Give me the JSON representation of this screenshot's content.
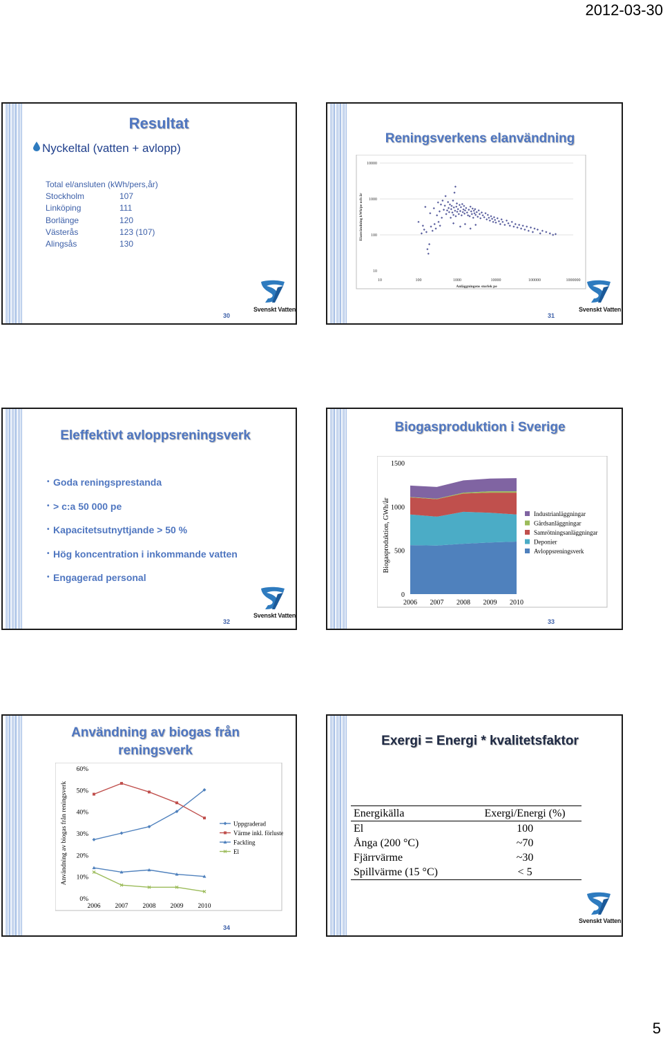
{
  "page": {
    "date": "2012-03-30",
    "number": "5"
  },
  "brand": {
    "name": "Svenskt Vatten",
    "blue": "#2e7bbf",
    "title_color": "#4f76c0"
  },
  "slide30": {
    "number": "30",
    "title": "Resultat",
    "subtitle": "Nyckeltal (vatten + avlopp)",
    "header": "Total el/ansluten (kWh/pers,år)",
    "rows": [
      {
        "city": "Stockholm",
        "value": "107"
      },
      {
        "city": "Linköping",
        "value": "111"
      },
      {
        "city": "Borlänge",
        "value": "120"
      },
      {
        "city": "Västerås",
        "value": "123 (107)"
      },
      {
        "city": "Alingsås",
        "value": "130"
      }
    ]
  },
  "slide31": {
    "number": "31",
    "title": "Reningsverkens elanvändning",
    "chart_data": {
      "type": "scatter",
      "title": "",
      "xlabel": "Anläggningens storlek pe",
      "ylabel": "Elanvändning kWh/pe och år",
      "x_scale": "log",
      "y_scale": "log",
      "xlim": [
        10,
        1000000
      ],
      "ylim": [
        10,
        10000
      ],
      "x_ticks": [
        "10",
        "100",
        "1000",
        "10000",
        "100000",
        "1000000"
      ],
      "y_ticks": [
        "10",
        "100",
        "1000",
        "10000"
      ],
      "color": "#5a5f9e",
      "points": [
        [
          150,
          600
        ],
        [
          200,
          400
        ],
        [
          250,
          550
        ],
        [
          300,
          350
        ],
        [
          320,
          800
        ],
        [
          350,
          450
        ],
        [
          380,
          700
        ],
        [
          400,
          300
        ],
        [
          420,
          900
        ],
        [
          450,
          500
        ],
        [
          480,
          650
        ],
        [
          500,
          1200
        ],
        [
          520,
          380
        ],
        [
          550,
          480
        ],
        [
          580,
          820
        ],
        [
          600,
          560
        ],
        [
          620,
          430
        ],
        [
          650,
          700
        ],
        [
          680,
          300
        ],
        [
          700,
          520
        ],
        [
          720,
          640
        ],
        [
          750,
          420
        ],
        [
          780,
          900
        ],
        [
          800,
          360
        ],
        [
          820,
          580
        ],
        [
          850,
          1500
        ],
        [
          880,
          470
        ],
        [
          900,
          2200
        ],
        [
          920,
          330
        ],
        [
          950,
          610
        ],
        [
          980,
          750
        ],
        [
          1000,
          440
        ],
        [
          1050,
          520
        ],
        [
          1100,
          380
        ],
        [
          1150,
          680
        ],
        [
          1200,
          460
        ],
        [
          1250,
          590
        ],
        [
          1300,
          350
        ],
        [
          1350,
          720
        ],
        [
          1400,
          430
        ],
        [
          1450,
          510
        ],
        [
          1500,
          640
        ],
        [
          1550,
          390
        ],
        [
          1600,
          480
        ],
        [
          1700,
          560
        ],
        [
          1800,
          420
        ],
        [
          1900,
          350
        ],
        [
          2000,
          500
        ],
        [
          2100,
          330
        ],
        [
          2200,
          610
        ],
        [
          2300,
          450
        ],
        [
          2400,
          380
        ],
        [
          2500,
          540
        ],
        [
          2600,
          300
        ],
        [
          2700,
          470
        ],
        [
          2800,
          400
        ],
        [
          2900,
          520
        ],
        [
          3000,
          360
        ],
        [
          3200,
          430
        ],
        [
          3400,
          320
        ],
        [
          3600,
          480
        ],
        [
          3800,
          380
        ],
        [
          4000,
          290
        ],
        [
          4300,
          420
        ],
        [
          4600,
          350
        ],
        [
          5000,
          310
        ],
        [
          5400,
          400
        ],
        [
          5800,
          270
        ],
        [
          6200,
          360
        ],
        [
          6600,
          300
        ],
        [
          7000,
          250
        ],
        [
          7500,
          330
        ],
        [
          8000,
          280
        ],
        [
          8500,
          230
        ],
        [
          9000,
          310
        ],
        [
          9500,
          260
        ],
        [
          10000,
          220
        ],
        [
          11000,
          290
        ],
        [
          12000,
          240
        ],
        [
          13000,
          200
        ],
        [
          14000,
          270
        ],
        [
          15000,
          230
        ],
        [
          17000,
          190
        ],
        [
          19000,
          250
        ],
        [
          21000,
          210
        ],
        [
          23000,
          180
        ],
        [
          26000,
          230
        ],
        [
          29000,
          170
        ],
        [
          32000,
          200
        ],
        [
          36000,
          160
        ],
        [
          40000,
          190
        ],
        [
          45000,
          150
        ],
        [
          50000,
          180
        ],
        [
          56000,
          140
        ],
        [
          63000,
          170
        ],
        [
          70000,
          130
        ],
        [
          80000,
          160
        ],
        [
          90000,
          120
        ],
        [
          100000,
          150
        ],
        [
          120000,
          140
        ],
        [
          140000,
          110
        ],
        [
          160000,
          130
        ],
        [
          200000,
          120
        ],
        [
          250000,
          110
        ],
        [
          300000,
          100
        ],
        [
          350000,
          105
        ],
        [
          100,
          230
        ],
        [
          120,
          110
        ],
        [
          130,
          180
        ],
        [
          140,
          140
        ],
        [
          160,
          120
        ],
        [
          170,
          40
        ],
        [
          180,
          30
        ],
        [
          190,
          55
        ],
        [
          210,
          170
        ],
        [
          230,
          130
        ],
        [
          260,
          200
        ],
        [
          280,
          150
        ],
        [
          330,
          230
        ],
        [
          360,
          180
        ],
        [
          1200,
          170
        ],
        [
          1600,
          200
        ],
        [
          2200,
          150
        ],
        [
          800,
          210
        ],
        [
          3000,
          190
        ]
      ]
    }
  },
  "slide32": {
    "number": "32",
    "title": "Eleffektivt avloppsreningsverk",
    "bullets": [
      "Goda reningsprestanda",
      "> c:a 50 000 pe",
      "Kapacitetsutnyttjande > 50 %",
      "Hög koncentration i inkommande vatten",
      "Engagerad personal"
    ]
  },
  "slide33": {
    "number": "33",
    "title": "Biogasproduktion i Sverige",
    "chart_data": {
      "type": "area",
      "title": "",
      "ylabel": "Biogasproduktion, GWh/år",
      "x": [
        "2006",
        "2007",
        "2008",
        "2009",
        "2010"
      ],
      "ylim": [
        0,
        1500
      ],
      "y_ticks": [
        "0",
        "500",
        "1000",
        "1500"
      ],
      "stacked": true,
      "legend_position": "right",
      "series": [
        {
          "name": "Avloppsreningsverk",
          "color": "#4f81bd",
          "values": [
            560,
            555,
            575,
            590,
            600
          ]
        },
        {
          "name": "Deponier",
          "color": "#4bacc6",
          "values": [
            350,
            330,
            365,
            340,
            310
          ]
        },
        {
          "name": "Samrötningsanläggningar",
          "color": "#c0504d",
          "values": [
            195,
            200,
            210,
            230,
            250
          ]
        },
        {
          "name": "Gårdsanläggningar",
          "color": "#9bbb59",
          "values": [
            5,
            5,
            10,
            15,
            15
          ]
        },
        {
          "name": "Industrianläggningar",
          "color": "#8064a2",
          "values": [
            130,
            135,
            140,
            145,
            150
          ]
        }
      ]
    }
  },
  "slide34": {
    "number": "34",
    "title": "Användning av biogas från reningsverk",
    "chart_data": {
      "type": "line",
      "title": "",
      "ylabel": "Användning av biogas från reningsverk",
      "x": [
        "2006",
        "2007",
        "2008",
        "2009",
        "2010"
      ],
      "ylim": [
        0,
        60
      ],
      "y_ticks": [
        "0%",
        "10%",
        "20%",
        "30%",
        "40%",
        "50%",
        "60%"
      ],
      "legend_position": "right",
      "series": [
        {
          "name": "Uppgraderad",
          "color": "#4f81bd",
          "marker": "diamond",
          "values": [
            27,
            30,
            33,
            40,
            50
          ]
        },
        {
          "name": "Värme inkl. förluster",
          "color": "#c0504d",
          "marker": "square",
          "values": [
            48,
            53,
            49,
            44,
            37
          ]
        },
        {
          "name": "Fackling",
          "color": "#4f81bd",
          "marker": "triangle",
          "values": [
            14,
            12,
            13,
            11,
            10
          ]
        },
        {
          "name": "El",
          "color": "#9bbb59",
          "marker": "x",
          "values": [
            12,
            6,
            5,
            5,
            3
          ]
        }
      ]
    }
  },
  "slide35": {
    "title": "Exergi = Energi * kvalitetsfaktor",
    "columns": [
      "Energikälla",
      "Exergi/Energi (%)"
    ],
    "rows": [
      [
        "El",
        "100"
      ],
      [
        "Ånga (200 °C)",
        "~70"
      ],
      [
        "Fjärrvärme",
        "~30"
      ],
      [
        "Spillvärme (15 °C)",
        "< 5"
      ]
    ]
  }
}
